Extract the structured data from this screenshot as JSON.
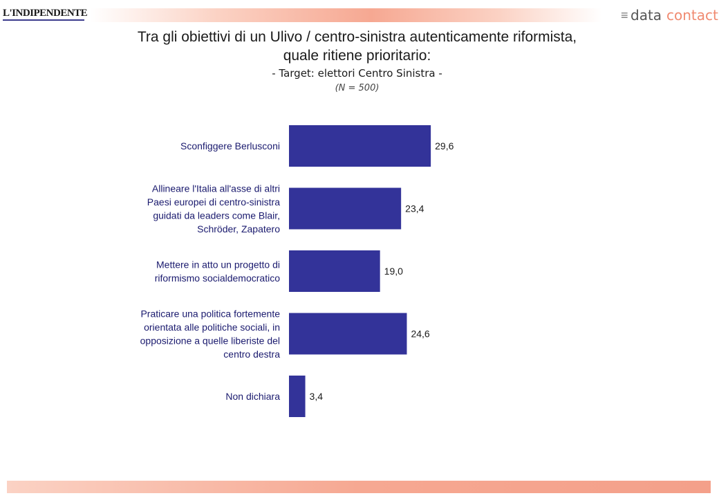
{
  "header": {
    "left_logo": "L'INDIPENDENTE",
    "right_logo_part1": "data",
    "right_logo_part2": "contact",
    "right_logo_mark": "≡"
  },
  "title_line1": "Tra gli obiettivi di un Ulivo / centro-sinistra autenticamente riformista,",
  "title_line2": "quale ritiene prioritario:",
  "subtitle": "- Target: elettori Centro Sinistra -",
  "note": "(N = 500)",
  "colors": {
    "bar": "#333399",
    "accent": "#f6a892"
  },
  "chart_data": {
    "type": "bar",
    "orientation": "horizontal",
    "categories": [
      [
        "Sconfiggere Berlusconi"
      ],
      [
        "Allineare l'Italia all'asse di altri",
        "Paesi europei di centro-sinistra",
        "guidati da leaders come Blair,",
        "Schröder, Zapatero"
      ],
      [
        "Mettere in atto un progetto di",
        "riformismo socialdemocratico"
      ],
      [
        "Praticare una politica fortemente",
        "orientata alle politiche sociali, in",
        "opposizione a quelle liberiste del",
        "centro destra"
      ],
      [
        "Non dichiara"
      ]
    ],
    "values": [
      29.6,
      23.4,
      19.0,
      24.6,
      3.4
    ],
    "value_labels": [
      "29,6",
      "23,4",
      "19,0",
      "24,6",
      "3,4"
    ],
    "xlim": [
      0,
      100
    ],
    "grid": false
  }
}
